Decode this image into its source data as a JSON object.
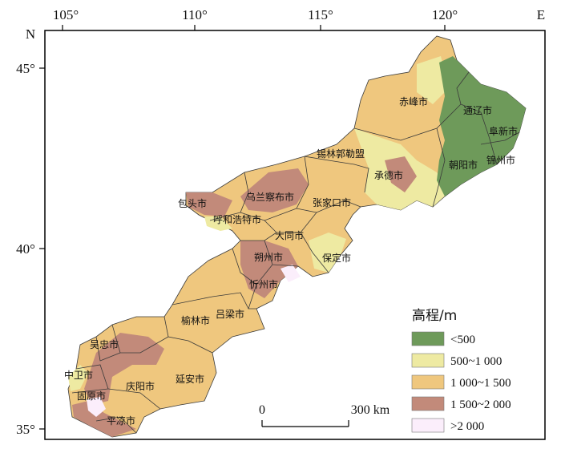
{
  "axes": {
    "top_ticks": [
      "105°",
      "110°",
      "115°",
      "120°"
    ],
    "top_end": "E",
    "left_ticks": [
      "45°",
      "40°",
      "35°"
    ],
    "left_end": "N"
  },
  "legend": {
    "title": "高程/m",
    "items": [
      {
        "label": "<500",
        "color": "#6e9a5a"
      },
      {
        "label": "500~1 000",
        "color": "#eeeaa2"
      },
      {
        "label": "1 000~1 500",
        "color": "#efc77e"
      },
      {
        "label": "1 500~2 000",
        "color": "#c28a7a"
      },
      {
        "label": ">2 000",
        "color": "#fbeefb"
      }
    ]
  },
  "scale_bar": {
    "start": "0",
    "end": "300 km"
  },
  "cities": [
    "赤峰市",
    "通辽市",
    "阜新市",
    "朝阳市",
    "锦州市",
    "锡林郭勒盟",
    "承德市",
    "包头市",
    "乌兰察布市",
    "张家口市",
    "呼和浩特市",
    "大同市",
    "朔州市",
    "保定市",
    "忻州市",
    "吕梁市",
    "榆林市",
    "吴忠市",
    "中卫市",
    "固原市",
    "庆阳市",
    "延安市",
    "平凉市"
  ],
  "colors": {
    "frame": "#000000",
    "boundary": "#3a3a3a"
  }
}
